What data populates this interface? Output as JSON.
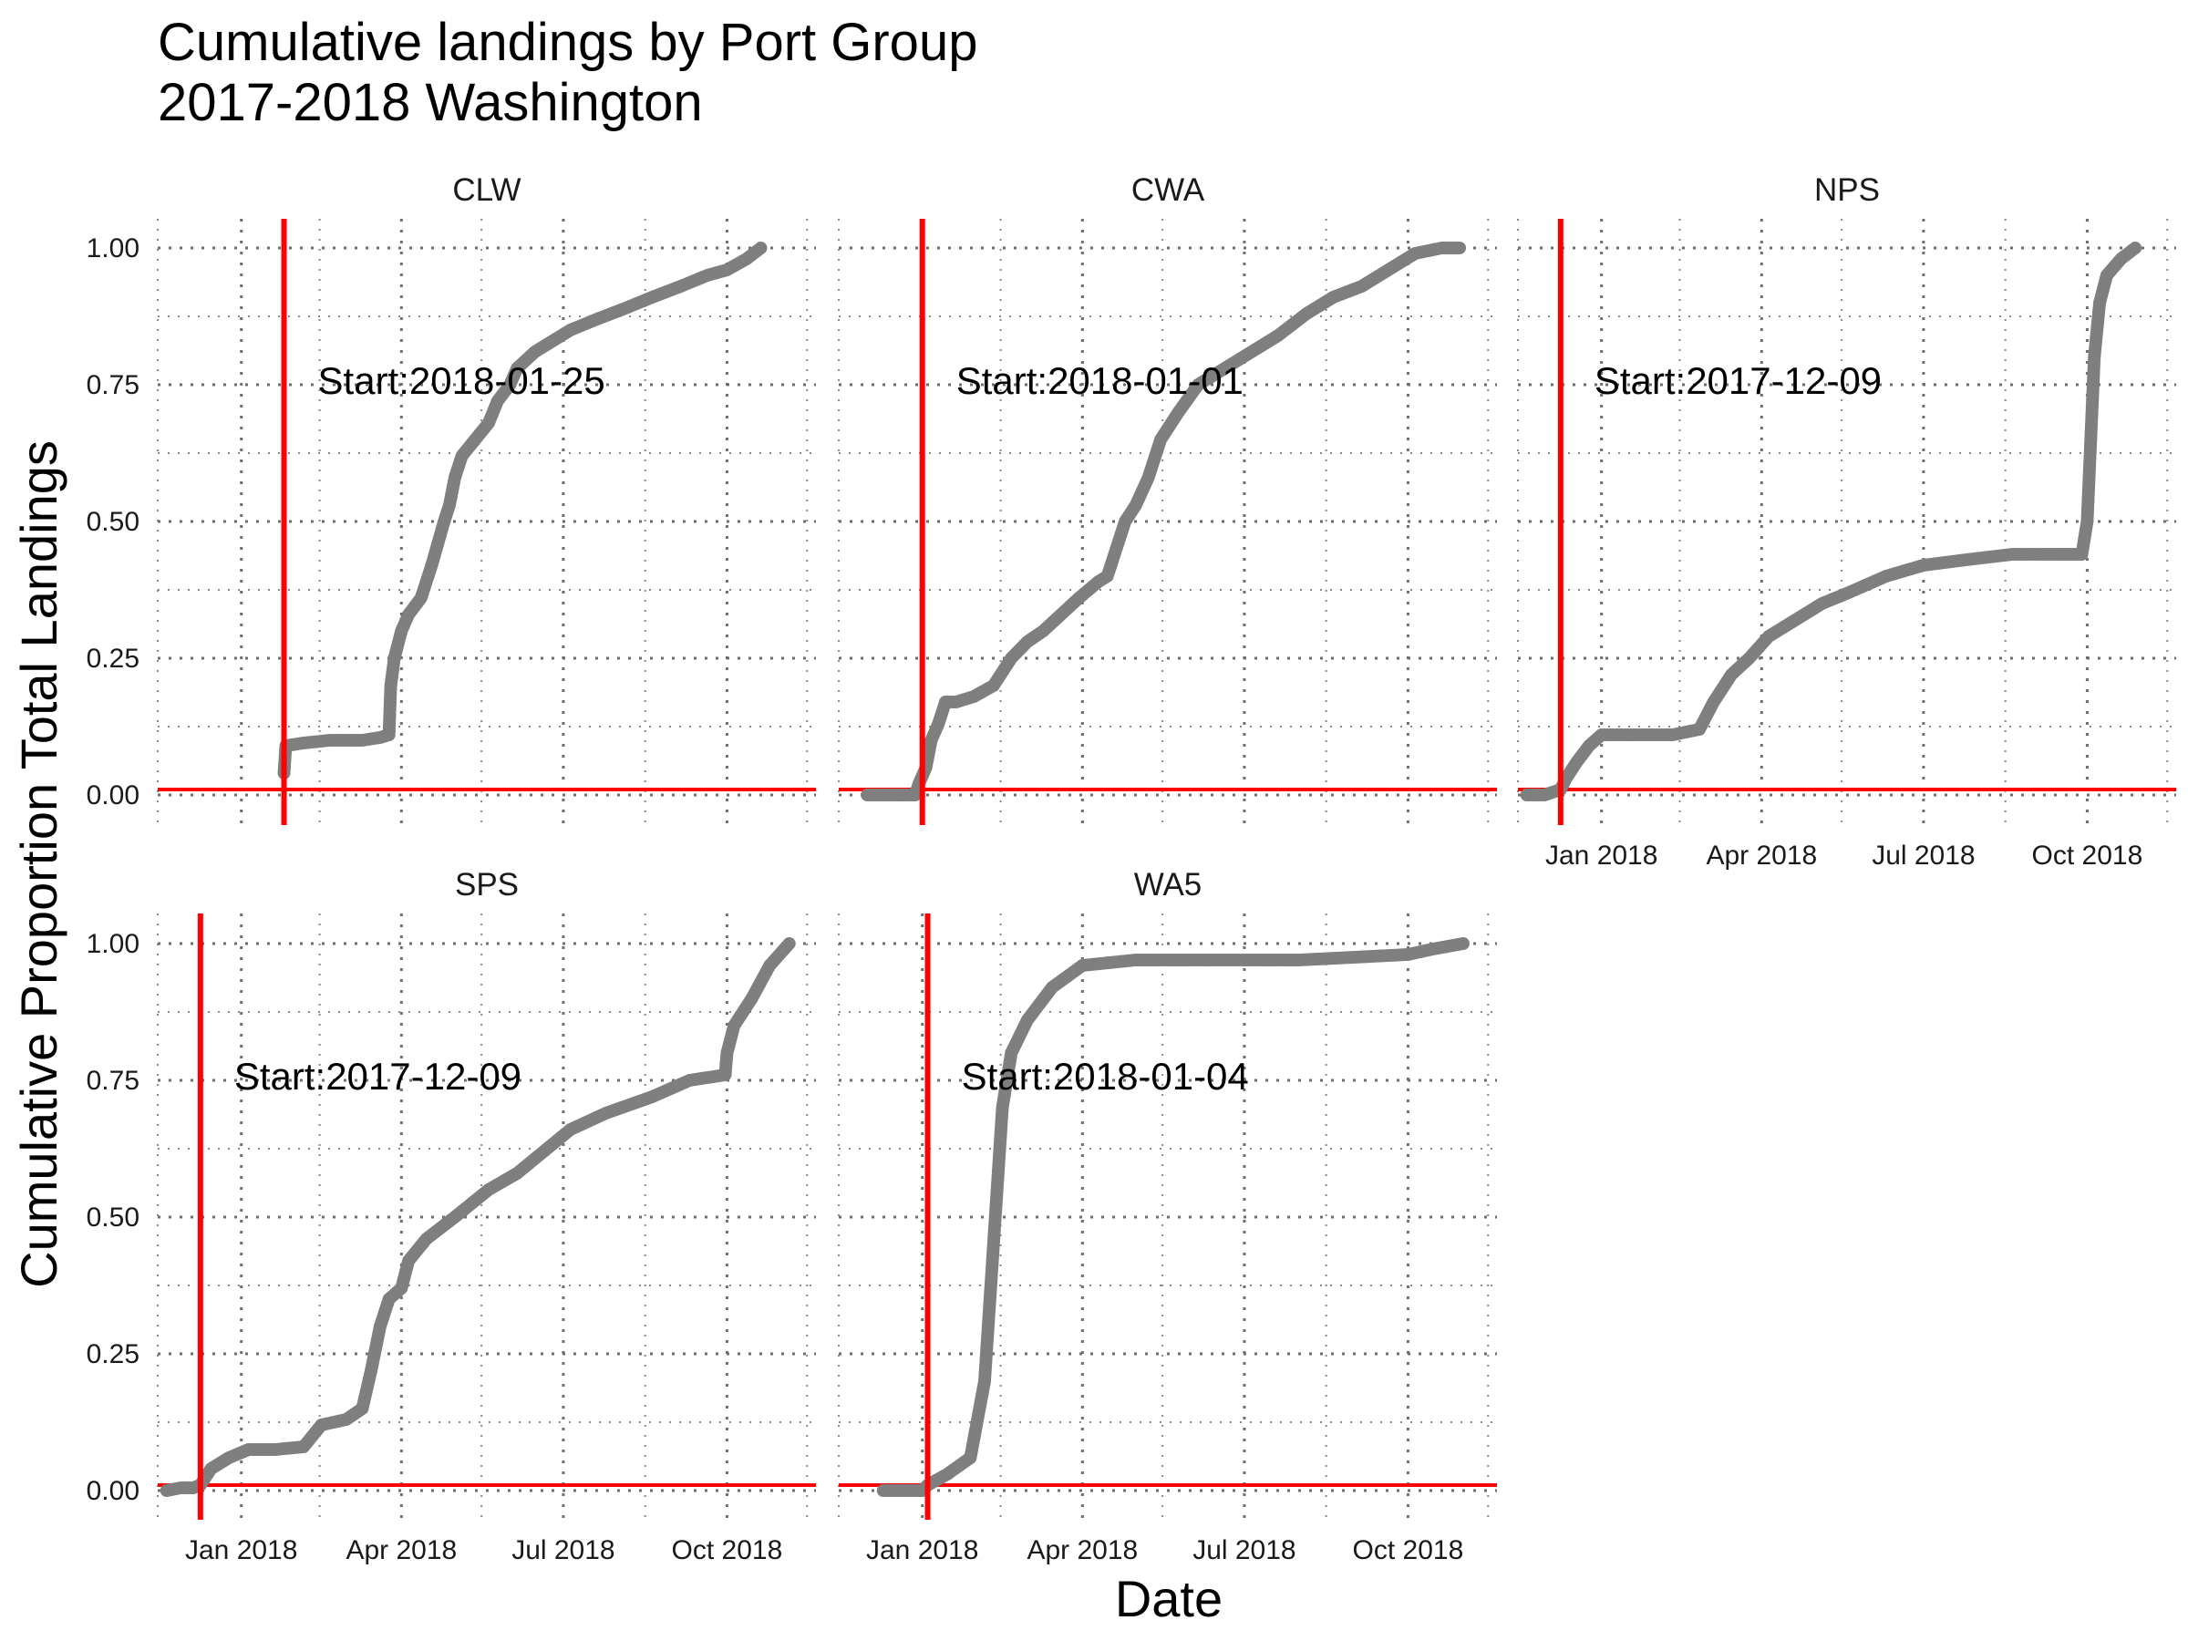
{
  "chart_data": {
    "type": "scatter",
    "title": "Cumulative landings by Port Group",
    "subtitle": "2017-2018 Washington",
    "xlabel": "Date",
    "ylabel": "Cumulative Proportion Total Landings",
    "x_ticks": [
      "Jan 2018",
      "Apr 2018",
      "Jul 2018",
      "Oct 2018"
    ],
    "x_tick_dates": [
      "2018-01-01",
      "2018-04-01",
      "2018-07-01",
      "2018-10-01"
    ],
    "y_ticks": [
      "0.00",
      "0.25",
      "0.50",
      "0.75",
      "1.00"
    ],
    "xlim": [
      "2017-11-15",
      "2018-11-20"
    ],
    "ylim": [
      0,
      1
    ],
    "grid": true,
    "point_color": "#7f7f7f",
    "reference_line_color": "#ff0000",
    "horizontal_reference": 0.01,
    "panels": [
      {
        "name": "CLW",
        "start_label": "Start:2018-01-25",
        "start_date": "2018-01-25",
        "points": [
          [
            "2018-01-25",
            0.04
          ],
          [
            "2018-01-26",
            0.09
          ],
          [
            "2018-02-05",
            0.095
          ],
          [
            "2018-02-20",
            0.1
          ],
          [
            "2018-03-10",
            0.1
          ],
          [
            "2018-03-20",
            0.105
          ],
          [
            "2018-03-25",
            0.11
          ],
          [
            "2018-03-26",
            0.2
          ],
          [
            "2018-03-28",
            0.25
          ],
          [
            "2018-04-01",
            0.3
          ],
          [
            "2018-04-05",
            0.33
          ],
          [
            "2018-04-12",
            0.36
          ],
          [
            "2018-04-18",
            0.42
          ],
          [
            "2018-04-25",
            0.5
          ],
          [
            "2018-04-28",
            0.53
          ],
          [
            "2018-05-01",
            0.58
          ],
          [
            "2018-05-05",
            0.62
          ],
          [
            "2018-05-10",
            0.64
          ],
          [
            "2018-05-15",
            0.66
          ],
          [
            "2018-05-20",
            0.68
          ],
          [
            "2018-05-25",
            0.72
          ],
          [
            "2018-06-01",
            0.75
          ],
          [
            "2018-06-05",
            0.78
          ],
          [
            "2018-06-15",
            0.81
          ],
          [
            "2018-06-25",
            0.83
          ],
          [
            "2018-07-05",
            0.85
          ],
          [
            "2018-07-20",
            0.87
          ],
          [
            "2018-08-05",
            0.89
          ],
          [
            "2018-08-20",
            0.91
          ],
          [
            "2018-09-05",
            0.93
          ],
          [
            "2018-09-20",
            0.95
          ],
          [
            "2018-10-01",
            0.96
          ],
          [
            "2018-10-12",
            0.98
          ],
          [
            "2018-10-20",
            1.0
          ]
        ]
      },
      {
        "name": "CWA",
        "start_label": "Start:2018-01-01",
        "start_date": "2018-01-01",
        "points": [
          [
            "2017-12-01",
            0.0
          ],
          [
            "2017-12-10",
            0.0
          ],
          [
            "2017-12-20",
            0.0
          ],
          [
            "2017-12-28",
            0.0
          ],
          [
            "2017-12-30",
            0.02
          ],
          [
            "2018-01-03",
            0.05
          ],
          [
            "2018-01-06",
            0.1
          ],
          [
            "2018-01-10",
            0.13
          ],
          [
            "2018-01-14",
            0.17
          ],
          [
            "2018-01-20",
            0.17
          ],
          [
            "2018-01-30",
            0.18
          ],
          [
            "2018-02-10",
            0.2
          ],
          [
            "2018-02-20",
            0.25
          ],
          [
            "2018-03-01",
            0.28
          ],
          [
            "2018-03-10",
            0.3
          ],
          [
            "2018-03-20",
            0.33
          ],
          [
            "2018-03-30",
            0.36
          ],
          [
            "2018-04-10",
            0.39
          ],
          [
            "2018-04-15",
            0.4
          ],
          [
            "2018-04-20",
            0.45
          ],
          [
            "2018-04-25",
            0.5
          ],
          [
            "2018-05-01",
            0.53
          ],
          [
            "2018-05-08",
            0.58
          ],
          [
            "2018-05-15",
            0.65
          ],
          [
            "2018-05-25",
            0.7
          ],
          [
            "2018-06-05",
            0.75
          ],
          [
            "2018-06-20",
            0.78
          ],
          [
            "2018-07-05",
            0.81
          ],
          [
            "2018-07-20",
            0.84
          ],
          [
            "2018-08-05",
            0.88
          ],
          [
            "2018-08-20",
            0.91
          ],
          [
            "2018-09-05",
            0.93
          ],
          [
            "2018-09-20",
            0.96
          ],
          [
            "2018-10-05",
            0.99
          ],
          [
            "2018-10-20",
            1.0
          ],
          [
            "2018-10-30",
            1.0
          ]
        ]
      },
      {
        "name": "NPS",
        "start_label": "Start:2017-12-09",
        "start_date": "2017-12-09",
        "points": [
          [
            "2017-11-20",
            0.0
          ],
          [
            "2017-11-30",
            0.0
          ],
          [
            "2017-12-09",
            0.01
          ],
          [
            "2017-12-12",
            0.03
          ],
          [
            "2017-12-18",
            0.06
          ],
          [
            "2017-12-25",
            0.09
          ],
          [
            "2018-01-01",
            0.11
          ],
          [
            "2018-01-20",
            0.11
          ],
          [
            "2018-02-10",
            0.11
          ],
          [
            "2018-02-25",
            0.12
          ],
          [
            "2018-03-05",
            0.17
          ],
          [
            "2018-03-15",
            0.22
          ],
          [
            "2018-03-25",
            0.25
          ],
          [
            "2018-04-05",
            0.29
          ],
          [
            "2018-04-20",
            0.32
          ],
          [
            "2018-05-05",
            0.35
          ],
          [
            "2018-05-20",
            0.37
          ],
          [
            "2018-06-10",
            0.4
          ],
          [
            "2018-07-01",
            0.42
          ],
          [
            "2018-07-25",
            0.43
          ],
          [
            "2018-08-20",
            0.44
          ],
          [
            "2018-09-15",
            0.44
          ],
          [
            "2018-09-28",
            0.44
          ],
          [
            "2018-10-01",
            0.5
          ],
          [
            "2018-10-03",
            0.65
          ],
          [
            "2018-10-05",
            0.8
          ],
          [
            "2018-10-08",
            0.9
          ],
          [
            "2018-10-12",
            0.95
          ],
          [
            "2018-10-20",
            0.98
          ],
          [
            "2018-10-28",
            1.0
          ]
        ]
      },
      {
        "name": "SPS",
        "start_label": "Start:2017-12-09",
        "start_date": "2017-12-09",
        "points": [
          [
            "2017-11-20",
            0.0
          ],
          [
            "2017-11-28",
            0.005
          ],
          [
            "2017-12-05",
            0.005
          ],
          [
            "2017-12-09",
            0.01
          ],
          [
            "2017-12-15",
            0.04
          ],
          [
            "2017-12-25",
            0.06
          ],
          [
            "2018-01-05",
            0.075
          ],
          [
            "2018-01-20",
            0.075
          ],
          [
            "2018-02-05",
            0.08
          ],
          [
            "2018-02-15",
            0.12
          ],
          [
            "2018-03-01",
            0.13
          ],
          [
            "2018-03-10",
            0.15
          ],
          [
            "2018-03-15",
            0.22
          ],
          [
            "2018-03-20",
            0.3
          ],
          [
            "2018-03-25",
            0.35
          ],
          [
            "2018-04-01",
            0.37
          ],
          [
            "2018-04-05",
            0.42
          ],
          [
            "2018-04-15",
            0.46
          ],
          [
            "2018-05-01",
            0.5
          ],
          [
            "2018-05-20",
            0.55
          ],
          [
            "2018-06-05",
            0.58
          ],
          [
            "2018-06-20",
            0.62
          ],
          [
            "2018-07-05",
            0.66
          ],
          [
            "2018-07-25",
            0.69
          ],
          [
            "2018-08-20",
            0.72
          ],
          [
            "2018-09-10",
            0.75
          ],
          [
            "2018-09-30",
            0.76
          ],
          [
            "2018-10-01",
            0.8
          ],
          [
            "2018-10-05",
            0.85
          ],
          [
            "2018-10-15",
            0.9
          ],
          [
            "2018-10-25",
            0.96
          ],
          [
            "2018-11-05",
            1.0
          ]
        ]
      },
      {
        "name": "WA5",
        "start_label": "Start:2018-01-04",
        "start_date": "2018-01-04",
        "points": [
          [
            "2017-12-10",
            0.0
          ],
          [
            "2017-12-20",
            0.0
          ],
          [
            "2018-01-01",
            0.0
          ],
          [
            "2018-01-04",
            0.01
          ],
          [
            "2018-01-15",
            0.03
          ],
          [
            "2018-01-28",
            0.06
          ],
          [
            "2018-02-05",
            0.2
          ],
          [
            "2018-02-10",
            0.45
          ],
          [
            "2018-02-15",
            0.7
          ],
          [
            "2018-02-20",
            0.8
          ],
          [
            "2018-03-01",
            0.86
          ],
          [
            "2018-03-15",
            0.92
          ],
          [
            "2018-04-01",
            0.96
          ],
          [
            "2018-05-01",
            0.97
          ],
          [
            "2018-06-01",
            0.97
          ],
          [
            "2018-07-01",
            0.97
          ],
          [
            "2018-08-01",
            0.97
          ],
          [
            "2018-09-01",
            0.975
          ],
          [
            "2018-10-01",
            0.98
          ],
          [
            "2018-10-15",
            0.99
          ],
          [
            "2018-11-01",
            1.0
          ]
        ]
      }
    ]
  }
}
